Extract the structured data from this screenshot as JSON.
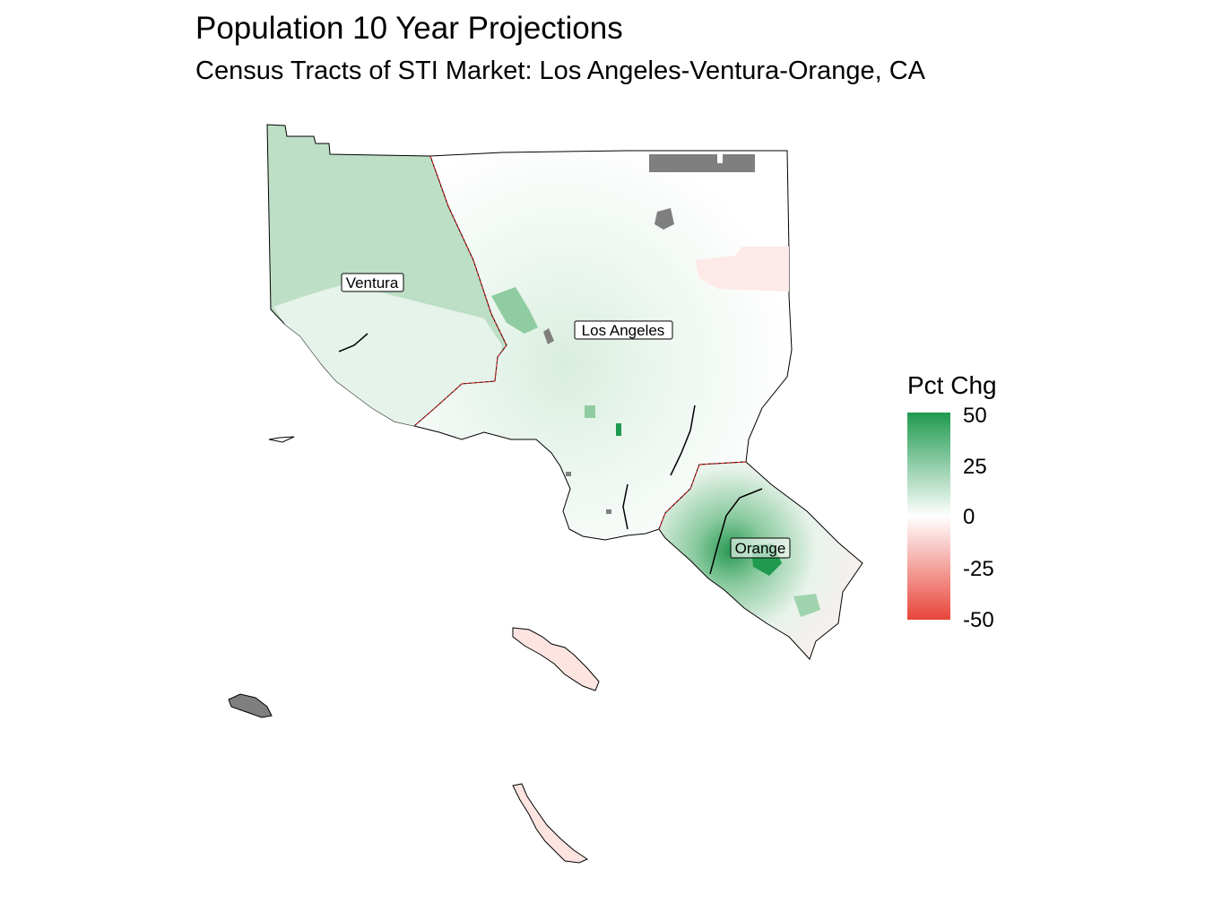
{
  "title": "Population 10 Year Projections",
  "subtitle": "Census Tracts of STI Market: Los Angeles-Ventura-Orange, CA",
  "map": {
    "counties": [
      {
        "name": "Ventura",
        "label": "Ventura",
        "fill": "#bddfc6"
      },
      {
        "name": "Los Angeles",
        "label": "Los Angeles",
        "fill": "#eef6f0"
      },
      {
        "name": "Orange",
        "label": "Orange",
        "fill": "#f3f8f4"
      }
    ],
    "colors": {
      "positive": "#1f9a4f",
      "neutral": "#ffffff",
      "negative": "#e8453a",
      "no_data": "#7f7f7f",
      "county_border": "#e31a1c",
      "outline": "#000000"
    }
  },
  "legend": {
    "title": "Pct Chg",
    "ticks": [
      "50",
      "25",
      "0",
      "-25",
      "-50"
    ],
    "min": -50,
    "max": 50
  }
}
